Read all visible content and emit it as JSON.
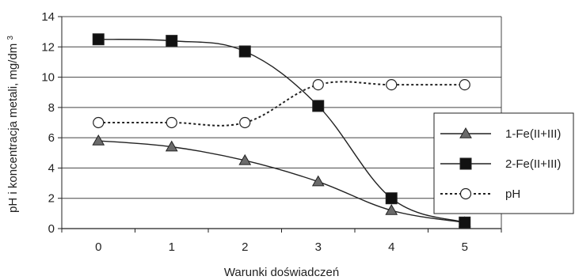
{
  "chart_data": {
    "type": "line",
    "title": "",
    "xlabel": "Warunki doświadczeń",
    "ylabel": "pH i koncentracja metali, mg/dm",
    "ylabel_superscript": "3",
    "x": [
      0,
      1,
      2,
      3,
      4,
      5
    ],
    "xlim": [
      -0.5,
      5.5
    ],
    "ylim": [
      0,
      14
    ],
    "x_ticks": [
      "0",
      "1",
      "2",
      "3",
      "4",
      "5"
    ],
    "y_ticks": [
      "0",
      "2",
      "4",
      "6",
      "8",
      "10",
      "12",
      "14"
    ],
    "grid": "horizontal",
    "legend_position": "right",
    "series": [
      {
        "name": "1-Fe(II+III)",
        "values": [
          5.8,
          5.4,
          4.5,
          3.1,
          1.2,
          0.4
        ],
        "marker": "triangle",
        "line_style": "solid",
        "color": "#222222",
        "marker_fill": "#6b6b6b"
      },
      {
        "name": "2-Fe(II+III)",
        "values": [
          12.5,
          12.4,
          11.7,
          8.1,
          2.0,
          0.4
        ],
        "marker": "square",
        "line_style": "solid",
        "color": "#222222",
        "marker_fill": "#111111"
      },
      {
        "name": "pH",
        "values": [
          7.0,
          7.0,
          7.0,
          9.5,
          9.5,
          9.5
        ],
        "marker": "circle",
        "line_style": "dotted",
        "color": "#222222",
        "marker_fill": "#ffffff"
      }
    ]
  }
}
